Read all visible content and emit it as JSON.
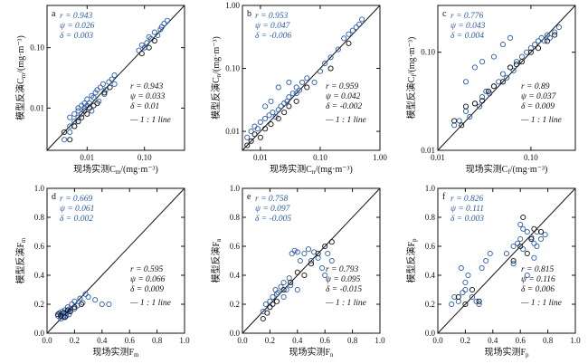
{
  "figure_note": "",
  "chart_data": [
    {
      "id": "a",
      "type": "scatter",
      "xscale": "log",
      "yscale": "log",
      "xlim": [
        0.002,
        0.5
      ],
      "ylim": [
        0.002,
        0.5
      ],
      "xticks": [
        0.01,
        0.1
      ],
      "xticklabels": [
        "0.01",
        "0.10"
      ],
      "yticks": [
        0.01,
        0.1
      ],
      "yticklabels": [
        "0.01",
        "0.10"
      ],
      "xlabel": "现场实测C_m/(mg·m⁻³)",
      "ylabel": "模型反演C_m/(mg·m⁻³)",
      "stats_blue": [
        "r = 0.943",
        "ψ = 0.026",
        "δ = 0.003"
      ],
      "stats_black": [
        "r = 0.943",
        "ψ = 0.033",
        "δ = 0.01"
      ],
      "line_label": "— 1 : 1 line",
      "series": [
        {
          "style": "blue-hollow",
          "x": [
            0.004,
            0.005,
            0.005,
            0.006,
            0.006,
            0.007,
            0.007,
            0.008,
            0.008,
            0.009,
            0.009,
            0.01,
            0.01,
            0.011,
            0.012,
            0.013,
            0.014,
            0.015,
            0.017,
            0.019,
            0.021,
            0.024,
            0.027,
            0.03,
            0.03,
            0.08,
            0.09,
            0.1,
            0.11,
            0.12,
            0.13,
            0.15,
            0.17,
            0.19,
            0.2,
            0.22,
            0.25,
            0.005,
            0.006,
            0.007,
            0.012,
            0.016,
            0.02
          ],
          "y": [
            0.003,
            0.005,
            0.004,
            0.006,
            0.008,
            0.007,
            0.009,
            0.008,
            0.011,
            0.01,
            0.012,
            0.011,
            0.014,
            0.012,
            0.016,
            0.015,
            0.018,
            0.02,
            0.022,
            0.025,
            0.02,
            0.027,
            0.03,
            0.035,
            0.025,
            0.09,
            0.11,
            0.1,
            0.12,
            0.15,
            0.14,
            0.18,
            0.16,
            0.2,
            0.22,
            0.25,
            0.28,
            0.007,
            0.005,
            0.01,
            0.009,
            0.013,
            0.017
          ]
        },
        {
          "style": "black-hollow",
          "x": [
            0.004,
            0.005,
            0.006,
            0.007,
            0.008,
            0.009,
            0.01,
            0.011,
            0.013,
            0.015,
            0.02,
            0.025,
            0.09,
            0.12,
            0.15
          ],
          "y": [
            0.004,
            0.003,
            0.005,
            0.006,
            0.007,
            0.009,
            0.008,
            0.01,
            0.011,
            0.012,
            0.018,
            0.022,
            0.08,
            0.1,
            0.13
          ]
        }
      ]
    },
    {
      "id": "b",
      "type": "scatter",
      "xscale": "log",
      "yscale": "log",
      "xlim": [
        0.005,
        1.0
      ],
      "ylim": [
        0.005,
        1.0
      ],
      "xticks": [
        0.01,
        0.1,
        1.0
      ],
      "xticklabels": [
        "0.01",
        "0.10",
        "1.00"
      ],
      "yticks": [
        0.01,
        0.1,
        1.0
      ],
      "yticklabels": [
        "0.01",
        "0.10",
        "1.00"
      ],
      "xlabel": "现场实测C_n/(mg·m⁻³)",
      "ylabel": "模型反演C_n/(mg·m⁻³)",
      "stats_blue": [
        "r = 0.953",
        "ψ = 0.047",
        "δ = -0.006"
      ],
      "stats_black": [
        "r = 0.959",
        "ψ = 0.042",
        "δ = -0.002"
      ],
      "line_label": "— 1 : 1 line",
      "series": [
        {
          "style": "blue-hollow",
          "x": [
            0.006,
            0.007,
            0.008,
            0.009,
            0.01,
            0.012,
            0.014,
            0.016,
            0.018,
            0.02,
            0.022,
            0.025,
            0.028,
            0.03,
            0.035,
            0.04,
            0.045,
            0.05,
            0.06,
            0.08,
            0.1,
            0.12,
            0.15,
            0.2,
            0.25,
            0.3,
            0.35,
            0.4,
            0.45,
            0.5,
            0.012,
            0.015,
            0.02,
            0.03,
            0.04
          ],
          "y": [
            0.008,
            0.01,
            0.012,
            0.011,
            0.014,
            0.016,
            0.018,
            0.02,
            0.017,
            0.022,
            0.025,
            0.028,
            0.03,
            0.035,
            0.04,
            0.05,
            0.045,
            0.06,
            0.07,
            0.06,
            0.09,
            0.12,
            0.15,
            0.2,
            0.3,
            0.35,
            0.4,
            0.45,
            0.5,
            0.6,
            0.025,
            0.03,
            0.05,
            0.06,
            0.04
          ]
        },
        {
          "style": "black-hollow",
          "x": [
            0.006,
            0.007,
            0.008,
            0.01,
            0.012,
            0.015,
            0.02,
            0.025,
            0.03,
            0.04,
            0.06,
            0.15,
            0.3
          ],
          "y": [
            0.006,
            0.007,
            0.009,
            0.008,
            0.011,
            0.013,
            0.016,
            0.02,
            0.025,
            0.03,
            0.05,
            0.1,
            0.25
          ]
        }
      ]
    },
    {
      "id": "c",
      "type": "scatter",
      "xscale": "log",
      "yscale": "log",
      "xlim": [
        0.01,
        0.3
      ],
      "ylim": [
        0.01,
        0.3
      ],
      "xticks": [
        0.01,
        0.1
      ],
      "xticklabels": [
        "0.01",
        "0.10"
      ],
      "yticks": [
        0.01,
        0.1
      ],
      "yticklabels": [
        "0.01",
        "0.10"
      ],
      "xlabel": "现场实测C_f/(mg·m⁻³)",
      "ylabel": "模型反演C_f/(mg·m⁻³)",
      "stats_blue": [
        "r = 0.776",
        "ψ = 0.043",
        "δ = 0.004"
      ],
      "stats_black": [
        "r = 0.89",
        "ψ = 0.037",
        "δ = 0.009"
      ],
      "line_label": "— 1 : 1 line",
      "series": [
        {
          "style": "blue-hollow",
          "x": [
            0.015,
            0.017,
            0.02,
            0.022,
            0.025,
            0.028,
            0.03,
            0.033,
            0.036,
            0.04,
            0.045,
            0.05,
            0.055,
            0.06,
            0.065,
            0.07,
            0.08,
            0.09,
            0.1,
            0.11,
            0.12,
            0.13,
            0.14,
            0.15,
            0.16,
            0.18,
            0.2,
            0.02,
            0.025,
            0.03,
            0.04,
            0.05,
            0.06
          ],
          "y": [
            0.018,
            0.02,
            0.025,
            0.022,
            0.03,
            0.028,
            0.035,
            0.04,
            0.038,
            0.045,
            0.05,
            0.06,
            0.055,
            0.07,
            0.065,
            0.08,
            0.09,
            0.1,
            0.11,
            0.12,
            0.13,
            0.14,
            0.13,
            0.15,
            0.14,
            0.16,
            0.18,
            0.05,
            0.07,
            0.08,
            0.09,
            0.12,
            0.14
          ]
        },
        {
          "style": "black-hollow",
          "x": [
            0.015,
            0.018,
            0.02,
            0.025,
            0.03,
            0.035,
            0.04,
            0.05,
            0.06,
            0.07,
            0.08,
            0.1,
            0.12,
            0.15,
            0.18
          ],
          "y": [
            0.02,
            0.018,
            0.028,
            0.03,
            0.032,
            0.04,
            0.045,
            0.05,
            0.07,
            0.075,
            0.08,
            0.1,
            0.11,
            0.13,
            0.15
          ]
        }
      ]
    },
    {
      "id": "d",
      "type": "scatter",
      "xscale": "linear",
      "yscale": "linear",
      "xlim": [
        0,
        1
      ],
      "ylim": [
        0,
        1
      ],
      "xticks": [
        0,
        0.2,
        0.4,
        0.6,
        0.8,
        1.0
      ],
      "xticklabels": [
        "0.0",
        "0.2",
        "0.4",
        "0.6",
        "0.8",
        "1.0"
      ],
      "yticks": [
        0,
        0.2,
        0.4,
        0.6,
        0.8,
        1.0
      ],
      "yticklabels": [
        "0.0",
        "0.2",
        "0.4",
        "0.6",
        "0.8",
        "1.0"
      ],
      "xlabel": "现场实测F_m",
      "ylabel": "模型反演F_m",
      "stats_blue": [
        "r = 0.669",
        "ψ = 0.061",
        "δ = 0.002"
      ],
      "stats_black": [
        "r = 0.595",
        "ψ = 0.066",
        "δ = 0.009"
      ],
      "line_label": "— 1 : 1 line",
      "series": [
        {
          "style": "blue-hollow",
          "x": [
            0.08,
            0.09,
            0.1,
            0.11,
            0.12,
            0.13,
            0.14,
            0.15,
            0.16,
            0.17,
            0.18,
            0.2,
            0.22,
            0.24,
            0.26,
            0.28,
            0.3,
            0.35,
            0.4,
            0.45,
            0.1,
            0.12,
            0.14,
            0.16,
            0.2
          ],
          "y": [
            0.12,
            0.14,
            0.13,
            0.15,
            0.12,
            0.16,
            0.14,
            0.18,
            0.15,
            0.17,
            0.2,
            0.22,
            0.19,
            0.24,
            0.21,
            0.27,
            0.25,
            0.23,
            0.2,
            0.2,
            0.1,
            0.11,
            0.12,
            0.13,
            0.17
          ]
        },
        {
          "style": "black-hollow",
          "x": [
            0.08,
            0.1,
            0.12,
            0.13,
            0.15,
            0.17,
            0.2,
            0.25
          ],
          "y": [
            0.13,
            0.12,
            0.14,
            0.11,
            0.16,
            0.15,
            0.18,
            0.2
          ]
        }
      ]
    },
    {
      "id": "e",
      "type": "scatter",
      "xscale": "linear",
      "yscale": "linear",
      "xlim": [
        0,
        1
      ],
      "ylim": [
        0,
        1
      ],
      "xticks": [
        0,
        0.2,
        0.4,
        0.6,
        0.8,
        1.0
      ],
      "xticklabels": [
        "0.0",
        "0.2",
        "0.4",
        "0.6",
        "0.8",
        "1.0"
      ],
      "yticks": [
        0,
        0.2,
        0.4,
        0.6,
        0.8,
        1.0
      ],
      "yticklabels": [
        "0.0",
        "0.2",
        "0.4",
        "0.6",
        "0.8",
        "1.0"
      ],
      "xlabel": "现场实测F_n",
      "ylabel": "模型反演F_n",
      "stats_blue": [
        "r = 0.758",
        "ψ = 0.097",
        "δ = -0.005"
      ],
      "stats_black": [
        "r = 0.793",
        "ψ = 0.095",
        "δ = -0.015"
      ],
      "line_label": "— 1 : 1 line",
      "series": [
        {
          "style": "blue-hollow",
          "x": [
            0.15,
            0.17,
            0.2,
            0.22,
            0.24,
            0.26,
            0.28,
            0.3,
            0.32,
            0.34,
            0.36,
            0.38,
            0.4,
            0.42,
            0.45,
            0.48,
            0.5,
            0.52,
            0.55,
            0.58,
            0.6,
            0.62,
            0.65,
            0.2,
            0.25,
            0.3,
            0.35,
            0.4
          ],
          "y": [
            0.15,
            0.2,
            0.22,
            0.25,
            0.3,
            0.28,
            0.32,
            0.35,
            0.3,
            0.38,
            0.55,
            0.57,
            0.56,
            0.5,
            0.55,
            0.58,
            0.5,
            0.56,
            0.52,
            0.45,
            0.4,
            0.55,
            0.5,
            0.18,
            0.27,
            0.25,
            0.33,
            0.3
          ]
        },
        {
          "style": "black-hollow",
          "x": [
            0.15,
            0.18,
            0.2,
            0.22,
            0.25,
            0.3,
            0.35,
            0.4,
            0.45,
            0.5,
            0.55,
            0.6,
            0.65
          ],
          "y": [
            0.1,
            0.14,
            0.18,
            0.2,
            0.22,
            0.3,
            0.35,
            0.42,
            0.4,
            0.48,
            0.55,
            0.6,
            0.63
          ]
        }
      ]
    },
    {
      "id": "f",
      "type": "scatter",
      "xscale": "linear",
      "yscale": "linear",
      "xlim": [
        0,
        1
      ],
      "ylim": [
        0,
        1
      ],
      "xticks": [
        0,
        0.2,
        0.4,
        0.6,
        0.8,
        1.0
      ],
      "xticklabels": [
        "0.0",
        "0.2",
        "0.4",
        "0.6",
        "0.8",
        "1.0"
      ],
      "yticks": [
        0,
        0.2,
        0.4,
        0.6,
        0.8,
        1.0
      ],
      "yticklabels": [
        "0.0",
        "0.2",
        "0.4",
        "0.6",
        "0.8",
        "1.0"
      ],
      "xlabel": "现场实测F_p",
      "ylabel": "模型反演F_p",
      "stats_blue": [
        "r = 0.826",
        "ψ = 0.111",
        "δ = 0.003"
      ],
      "stats_black": [
        "r = 0.815",
        "ψ = 0.116",
        "δ = 0.006"
      ],
      "line_label": "— 1 : 1 line",
      "series": [
        {
          "style": "blue-hollow",
          "x": [
            0.1,
            0.12,
            0.15,
            0.17,
            0.2,
            0.22,
            0.25,
            0.28,
            0.3,
            0.32,
            0.35,
            0.38,
            0.5,
            0.55,
            0.58,
            0.6,
            0.62,
            0.65,
            0.68,
            0.7,
            0.72,
            0.75,
            0.78,
            0.6,
            0.65,
            0.7,
            0.55,
            0.62,
            0.72,
            0.2,
            0.18
          ],
          "y": [
            0.2,
            0.25,
            0.22,
            0.45,
            0.3,
            0.4,
            0.25,
            0.22,
            0.2,
            0.45,
            0.5,
            0.55,
            0.55,
            0.6,
            0.62,
            0.65,
            0.58,
            0.7,
            0.66,
            0.62,
            0.7,
            0.65,
            0.68,
            0.75,
            0.4,
            0.52,
            0.48,
            0.72,
            0.6,
            0.35,
            0.28
          ]
        },
        {
          "style": "black-hollow",
          "x": [
            0.15,
            0.2,
            0.25,
            0.3,
            0.55,
            0.6,
            0.65,
            0.7,
            0.75,
            0.62,
            0.68
          ],
          "y": [
            0.25,
            0.2,
            0.3,
            0.22,
            0.5,
            0.6,
            0.55,
            0.72,
            0.7,
            0.8,
            0.65
          ]
        }
      ]
    }
  ],
  "colors": {
    "blue": "#2a5cab",
    "black": "#111111",
    "line": "#111111"
  }
}
